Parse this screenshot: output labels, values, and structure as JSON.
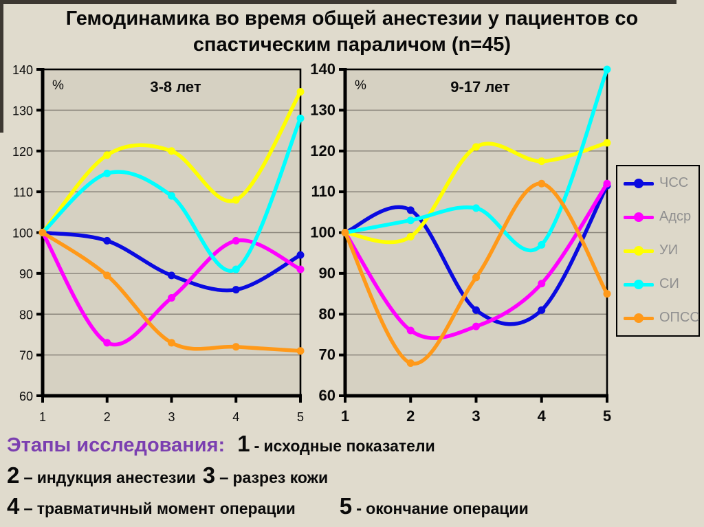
{
  "title": "Гемодинамика во время общей анестезии у пациентов со спастическим параличом (n=45)",
  "chart_data": [
    {
      "type": "line",
      "title": "3-8 лет",
      "ylabel": "%",
      "x": [
        1,
        2,
        3,
        4,
        5
      ],
      "xtick_labels": [
        "1",
        "2",
        "3",
        "4",
        "5"
      ],
      "ylim": [
        60,
        140
      ],
      "ytick_step": 10,
      "grid": true,
      "bold_ticks": false,
      "legend_position": "none",
      "series": [
        {
          "name": "ЧСС",
          "color": "#0a0ae0",
          "values": [
            100,
            98,
            89.5,
            86,
            94.5
          ]
        },
        {
          "name": "Адср",
          "color": "#ff00ff",
          "values": [
            100,
            73,
            84,
            98,
            91
          ]
        },
        {
          "name": "УИ",
          "color": "#ffff00",
          "values": [
            100,
            119,
            120,
            108,
            134.5
          ]
        },
        {
          "name": "СИ",
          "color": "#00ffff",
          "values": [
            100,
            114.5,
            109,
            91,
            128
          ]
        },
        {
          "name": "ОПСС",
          "color": "#ff9919",
          "values": [
            100,
            89.5,
            73,
            72,
            71
          ]
        }
      ]
    },
    {
      "type": "line",
      "title": "9-17 лет",
      "ylabel": "%",
      "x": [
        1,
        2,
        3,
        4,
        5
      ],
      "xtick_labels": [
        "1",
        "2",
        "3",
        "4",
        "5"
      ],
      "ylim": [
        60,
        140
      ],
      "ytick_step": 10,
      "grid": true,
      "bold_ticks": true,
      "legend_position": "right-outside",
      "series": [
        {
          "name": "ЧСС",
          "color": "#0a0ae0",
          "values": [
            100,
            105.5,
            81,
            81,
            111.5
          ]
        },
        {
          "name": "Адср",
          "color": "#ff00ff",
          "values": [
            100,
            76,
            77,
            87.5,
            112
          ]
        },
        {
          "name": "УИ",
          "color": "#ffff00",
          "values": [
            100,
            99,
            121,
            117.5,
            122
          ]
        },
        {
          "name": "СИ",
          "color": "#00ffff",
          "values": [
            100,
            103,
            106,
            97,
            140
          ]
        },
        {
          "name": "ОПСС",
          "color": "#ff9919",
          "values": [
            100,
            68,
            89,
            112,
            85
          ]
        }
      ]
    }
  ],
  "stages": {
    "heading": "Этапы исследования:",
    "items": [
      {
        "num": "1",
        "sep": "-",
        "text": "исходные показатели"
      },
      {
        "num": "2",
        "sep": "–",
        "text": "индукция анестезии"
      },
      {
        "num": "3",
        "sep": "–",
        "text": "разрез кожи"
      },
      {
        "num": "4",
        "sep": "–",
        "text": "травматичный момент операции"
      },
      {
        "num": "5",
        "sep": "-",
        "text": "окончание операции"
      }
    ]
  },
  "colors": {
    "background": "#e0dbcd",
    "plot_background": "#d6d1c2",
    "grid": "#8a857b",
    "axis": "#000000",
    "legend_text": "#8f8f8f",
    "heading_purple": "#7b3fb0",
    "frame": "#3d3832"
  }
}
